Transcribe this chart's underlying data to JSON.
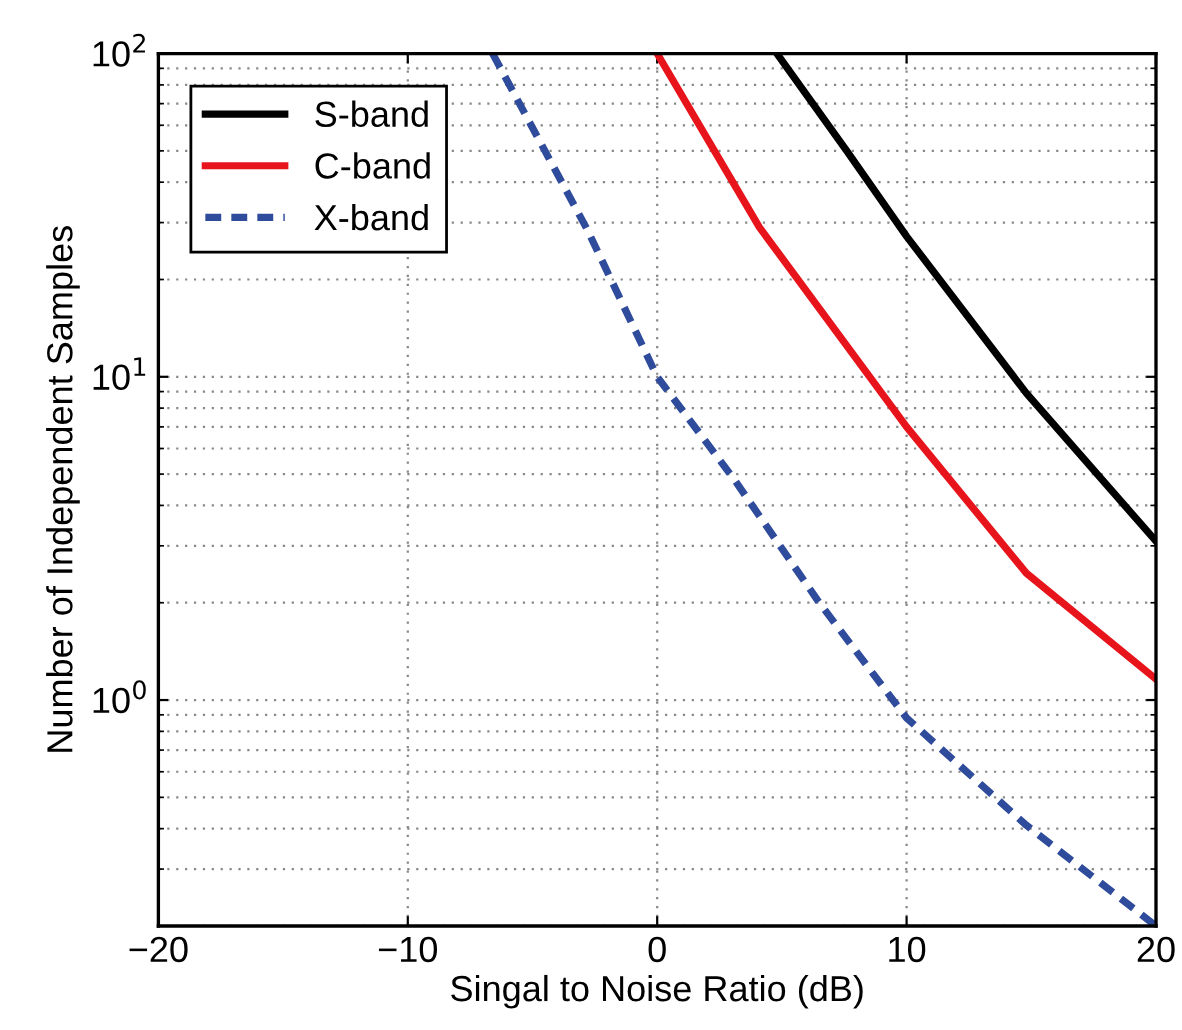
{
  "chart_data": {
    "type": "line",
    "xlabel": "Singal to Noise Ratio (dB)",
    "ylabel": "Number of Independent Samples",
    "series": [
      {
        "name": "S-band",
        "color": "#000000",
        "line_style": "solid",
        "x": [
          4.8,
          7.6,
          10,
          14.8,
          20
        ],
        "values": [
          100,
          50,
          27.2,
          8.9,
          3.1
        ]
      },
      {
        "name": "C-band",
        "color": "#e8141b",
        "line_style": "solid",
        "x": [
          0,
          4.1,
          10,
          14.8,
          20
        ],
        "values": [
          100,
          29,
          7.0,
          2.47,
          1.16
        ]
      },
      {
        "name": "X-band",
        "color": "#2f4b9b",
        "line_style": "dashed",
        "x": [
          -6.6,
          -2.8,
          0,
          3.1,
          6.5,
          10,
          14.8,
          20
        ],
        "values": [
          100,
          28.5,
          10,
          4.8,
          2.0,
          0.88,
          0.41,
          0.2
        ]
      }
    ],
    "log": "y",
    "xlim": [
      -20,
      20
    ],
    "ylim": [
      0.2,
      100
    ],
    "xticks": [
      -20,
      -10,
      0,
      10,
      20
    ],
    "yticks": [
      {
        "value": 1,
        "label": "10$^{0}$"
      },
      {
        "value": 10,
        "label": "10$^{1}$"
      },
      {
        "value": 100,
        "label": "10$^{2}$"
      }
    ],
    "grid": true,
    "legend": "top left",
    "marker": "none"
  }
}
